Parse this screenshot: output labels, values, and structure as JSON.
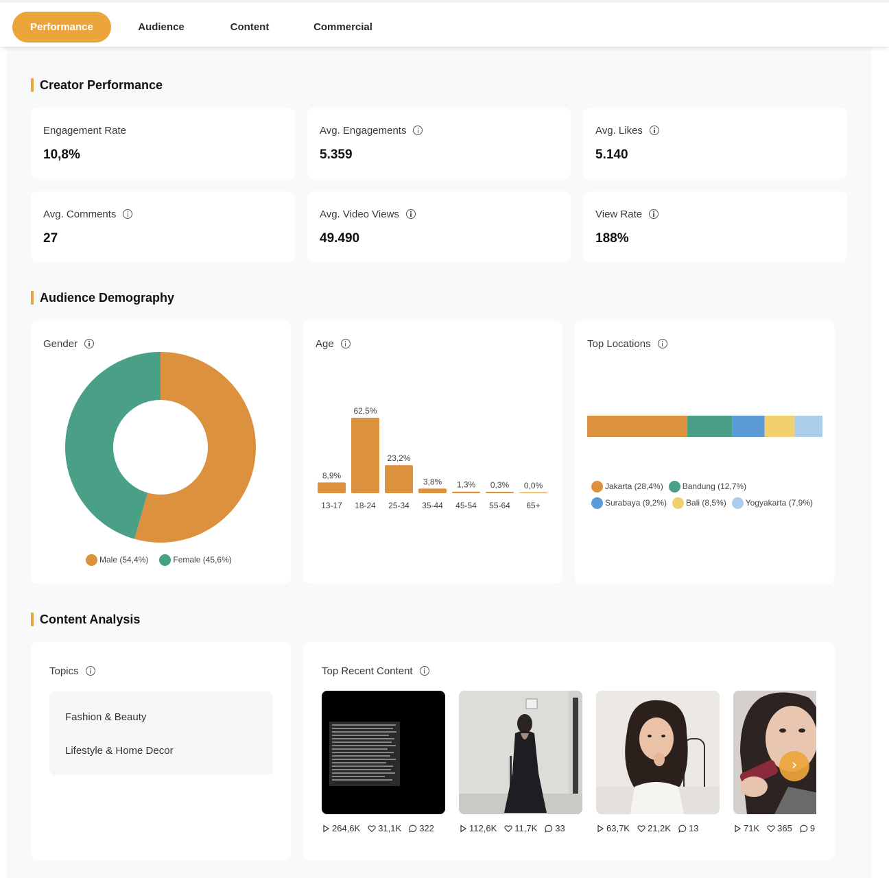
{
  "tabs": [
    {
      "label": "Performance",
      "active": true
    },
    {
      "label": "Audience",
      "active": false
    },
    {
      "label": "Content",
      "active": false
    },
    {
      "label": "Commercial",
      "active": false
    }
  ],
  "accent_color": "#eba53b",
  "creator_performance": {
    "title": "Creator Performance",
    "metrics": [
      {
        "label": "Engagement Rate",
        "value": "10,8%",
        "info": false
      },
      {
        "label": "Avg. Engagements",
        "value": "5.359",
        "info": true
      },
      {
        "label": "Avg. Likes",
        "value": "5.140",
        "info": true
      },
      {
        "label": "Avg. Comments",
        "value": "27",
        "info": true
      },
      {
        "label": "Avg. Video Views",
        "value": "49.490",
        "info": true
      },
      {
        "label": "View Rate",
        "value": "188%",
        "info": true
      }
    ]
  },
  "audience_demography": {
    "title": "Audience Demography",
    "gender": {
      "title": "Gender",
      "legend": [
        "Male (54,4%)",
        "Female (45,6%)"
      ],
      "colors": [
        "#dc913e",
        "#4aa086"
      ]
    },
    "age": {
      "title": "Age"
    },
    "top_locations": {
      "title": "Top Locations",
      "legend": [
        "Jakarta (28,4%)",
        "Bandung (12,7%)",
        "Surabaya (9,2%)",
        "Bali (8,5%)",
        "Yogyakarta (7,9%)"
      ],
      "colors": [
        "#dc913e",
        "#4aa086",
        "#5b9bd8",
        "#f2d06f",
        "#a9cdea"
      ]
    }
  },
  "chart_data": [
    {
      "type": "pie",
      "title": "Gender",
      "categories": [
        "Male",
        "Female"
      ],
      "values": [
        54.4,
        45.6
      ],
      "unit": "%",
      "donut": true,
      "colors": [
        "#dc913e",
        "#4aa086"
      ]
    },
    {
      "type": "bar",
      "title": "Age",
      "categories": [
        "13-17",
        "18-24",
        "25-34",
        "35-44",
        "45-54",
        "55-64",
        "65+"
      ],
      "values": [
        8.9,
        62.5,
        23.2,
        3.8,
        1.3,
        0.3,
        0.0
      ],
      "labels": [
        "8,9%",
        "62,5%",
        "23,2%",
        "3,8%",
        "1,3%",
        "0,3%",
        "0,0%"
      ],
      "color": "#dc913e",
      "grid": false
    },
    {
      "type": "bar",
      "orientation": "horizontal-stacked",
      "title": "Top Locations",
      "categories": [
        "Jakarta",
        "Bandung",
        "Surabaya",
        "Bali",
        "Yogyakarta"
      ],
      "values": [
        28.4,
        12.7,
        9.2,
        8.5,
        7.9
      ],
      "unit": "%",
      "colors": [
        "#dc913e",
        "#4aa086",
        "#5b9bd8",
        "#f2d06f",
        "#a9cdea"
      ]
    }
  ],
  "content_analysis": {
    "title": "Content Analysis",
    "topics": {
      "title": "Topics",
      "items": [
        "Fashion & Beauty",
        "Lifestyle & Home Decor"
      ]
    },
    "top_recent_content": {
      "title": "Top Recent Content",
      "items": [
        {
          "views": "264,6K",
          "likes": "31,1K",
          "comments": "322",
          "thumb": "text-post-dark"
        },
        {
          "views": "112,6K",
          "likes": "11,7K",
          "comments": "33",
          "thumb": "woman-black-dress-hallway"
        },
        {
          "views": "63,7K",
          "likes": "21,2K",
          "comments": "13",
          "thumb": "woman-white-top-portrait"
        },
        {
          "views": "71K",
          "likes": "365",
          "comments": "9",
          "thumb": "woman-makeup-closeup"
        }
      ]
    }
  }
}
